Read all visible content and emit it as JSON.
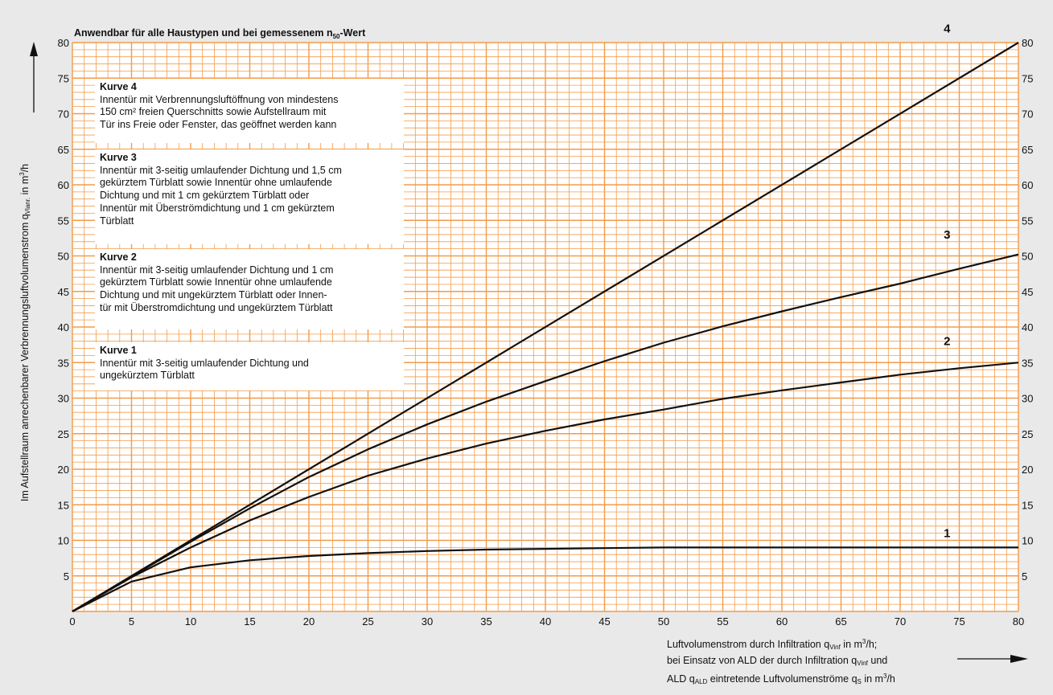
{
  "chart_data": {
    "type": "line",
    "title_prefix": "Anwendbar für alle Haustypen und bei gemessenem n",
    "title_sub": "50",
    "title_suffix": "-Wert",
    "ylabel_main": "Im Aufstellraum anrechenbarer Verbrennungsluftvolumenstrom q",
    "ylabel_sub": "Vlanr.",
    "ylabel_unit_pre": " in m",
    "ylabel_unit_sup": "3",
    "ylabel_unit_post": "/h",
    "xlabel_lines": {
      "l1_a": "Luftvolumenstrom durch Infiltration q",
      "l1_sub": "Vinf",
      "l1_b": " in m",
      "l1_sup": "3",
      "l1_c": "/h;",
      "l2_a": "bei Einsatz von ALD der durch Infiltration q",
      "l2_sub": "Vinf",
      "l2_b": " und",
      "l3_a": "ALD q",
      "l3_sub": "ALD",
      "l3_b": " eintretende Luftvolumenströme q",
      "l3_sub2": "S",
      "l3_c": " in m",
      "l3_sup": "3",
      "l3_d": "/h"
    },
    "xlim": [
      0,
      80
    ],
    "ylim": [
      0,
      80
    ],
    "x_ticks": [
      0,
      5,
      10,
      15,
      20,
      25,
      30,
      35,
      40,
      45,
      50,
      55,
      60,
      65,
      70,
      75,
      80
    ],
    "y_ticks": [
      5,
      10,
      15,
      20,
      25,
      30,
      35,
      40,
      45,
      50,
      55,
      60,
      65,
      70,
      75,
      80
    ],
    "grid": true,
    "colors": {
      "grid": "#f39b4a",
      "plot_bg": "#ffffff",
      "line": "#111111",
      "page_bg": "#e9e9e9"
    },
    "series": [
      {
        "name": "4",
        "x": [
          0,
          80
        ],
        "y": [
          0,
          80
        ]
      },
      {
        "name": "3",
        "x": [
          0,
          5,
          10,
          15,
          20,
          25,
          30,
          35,
          40,
          45,
          50,
          55,
          60,
          65,
          70,
          75,
          80
        ],
        "y": [
          0,
          4.9,
          9.8,
          14.5,
          18.9,
          22.8,
          26.3,
          29.5,
          32.4,
          35.2,
          37.8,
          40.1,
          42.2,
          44.2,
          46.1,
          48.2,
          50.2
        ]
      },
      {
        "name": "2",
        "x": [
          0,
          5,
          10,
          15,
          20,
          25,
          30,
          35,
          40,
          45,
          50,
          55,
          60,
          65,
          70,
          75,
          80
        ],
        "y": [
          0,
          4.8,
          9.0,
          12.8,
          16.1,
          19.1,
          21.5,
          23.6,
          25.4,
          27.0,
          28.4,
          29.9,
          31.1,
          32.2,
          33.3,
          34.2,
          35.0
        ]
      },
      {
        "name": "1",
        "x": [
          0,
          5,
          10,
          15,
          20,
          25,
          30,
          35,
          40,
          45,
          50,
          55,
          60,
          65,
          70,
          75,
          80
        ],
        "y": [
          0,
          4.2,
          6.2,
          7.2,
          7.8,
          8.2,
          8.5,
          8.7,
          8.8,
          8.9,
          9.0,
          9.0,
          9.0,
          9.0,
          9.0,
          9.0,
          9.0
        ]
      }
    ],
    "legend": [
      {
        "title": "Kurve 4",
        "text": "Innentür mit Verbrennungsluftöffnung von mindestens\n150 cm² freien Querschnitts sowie Aufstellraum mit\nTür ins Freie oder Fenster, das geöffnet werden kann"
      },
      {
        "title": "Kurve 3",
        "text": "Innentür mit 3-seitig umlaufender Dichtung und 1,5 cm\ngekürztem Türblatt sowie Innentür ohne umlaufende\nDichtung und mit 1 cm gekürztem Türblatt oder\nInnentür mit Überströmdichtung und 1 cm gekürztem\nTürblatt"
      },
      {
        "title": "Kurve 2",
        "text": "Innentür mit 3-seitig umlaufender Dichtung und 1 cm\ngekürztem Türblatt sowie Innentür ohne umlaufende\nDichtung und mit ungekürztem Türblatt oder Innen-\ntür mit Überstromdichtung und ungekürztem Türblatt"
      },
      {
        "title": "Kurve 1",
        "text": "Innentür mit 3-seitig umlaufender Dichtung und\nungekürztem Türblatt"
      }
    ]
  }
}
